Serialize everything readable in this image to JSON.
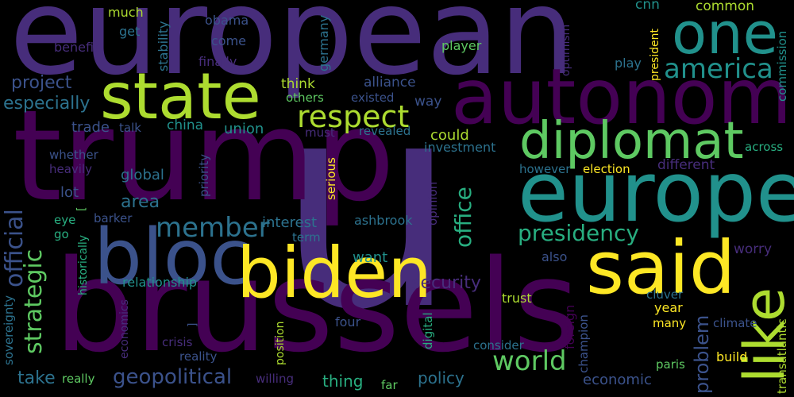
{
  "palette": {
    "dark_purple": "#440154",
    "purple": "#472d7b",
    "indigo": "#3b528b",
    "blue": "#2c728e",
    "teal": "#21918c",
    "green": "#28ae80",
    "light_green": "#5ec962",
    "lime": "#addc30",
    "yellow": "#fde725"
  },
  "words": [
    {
      "text": "u",
      "color": "#472d7b"
    },
    {
      "text": "european",
      "color": "#472d7b"
    },
    {
      "text": "trump",
      "color": "#440154"
    },
    {
      "text": "brussels",
      "color": "#440154"
    },
    {
      "text": "autonomy",
      "color": "#440154"
    },
    {
      "text": "state",
      "color": "#addc30"
    },
    {
      "text": "one",
      "color": "#21918c"
    },
    {
      "text": "europe",
      "color": "#21918c"
    },
    {
      "text": "diplomat",
      "color": "#5ec962"
    },
    {
      "text": "bloc",
      "color": "#3b528b"
    },
    {
      "text": "biden",
      "color": "#fde725"
    },
    {
      "text": "said",
      "color": "#fde725"
    },
    {
      "text": "like",
      "color": "#addc30"
    },
    {
      "text": "respect",
      "color": "#addc30"
    },
    {
      "text": "america",
      "color": "#21918c"
    },
    {
      "text": "presidency",
      "color": "#28ae80"
    },
    {
      "text": "member",
      "color": "#2c728e"
    },
    {
      "text": "official",
      "color": "#3b528b"
    },
    {
      "text": "strategic",
      "color": "#5ec962"
    },
    {
      "text": "office",
      "color": "#28ae80"
    },
    {
      "text": "world",
      "color": "#5ec962"
    },
    {
      "text": "problem",
      "color": "#3b528b"
    },
    {
      "text": "geopolitical",
      "color": "#3b528b"
    },
    {
      "text": "security",
      "color": "#472d7b"
    },
    {
      "text": "project",
      "color": "#3b528b"
    },
    {
      "text": "especially",
      "color": "#2c728e"
    },
    {
      "text": "much",
      "color": "#addc30"
    },
    {
      "text": "obama",
      "color": "#3b528b"
    },
    {
      "text": "get",
      "color": "#2c728e"
    },
    {
      "text": "benefit",
      "color": "#472d7b"
    },
    {
      "text": "stability",
      "color": "#2c728e"
    },
    {
      "text": "come",
      "color": "#3b528b"
    },
    {
      "text": "finally",
      "color": "#472d7b"
    },
    {
      "text": "germany",
      "color": "#2c728e"
    },
    {
      "text": "optimism",
      "color": "#472d7b"
    },
    {
      "text": "cnn",
      "color": "#21918c"
    },
    {
      "text": "common",
      "color": "#addc30"
    },
    {
      "text": "player",
      "color": "#5ec962"
    },
    {
      "text": "play",
      "color": "#2c728e"
    },
    {
      "text": "president",
      "color": "#fde725"
    },
    {
      "text": "commission",
      "color": "#21918c"
    },
    {
      "text": "think",
      "color": "#addc30"
    },
    {
      "text": "alliance",
      "color": "#3b528b"
    },
    {
      "text": "others",
      "color": "#5ec962"
    },
    {
      "text": "existed",
      "color": "#3b528b"
    },
    {
      "text": "way",
      "color": "#3b528b"
    },
    {
      "text": "trade",
      "color": "#3b528b"
    },
    {
      "text": "talk",
      "color": "#3b528b"
    },
    {
      "text": "china",
      "color": "#21918c"
    },
    {
      "text": "union",
      "color": "#21918c"
    },
    {
      "text": "must",
      "color": "#472d7b"
    },
    {
      "text": "revealed",
      "color": "#2c728e"
    },
    {
      "text": "could",
      "color": "#addc30"
    },
    {
      "text": "investment",
      "color": "#2c728e"
    },
    {
      "text": "across",
      "color": "#28ae80"
    },
    {
      "text": "whether",
      "color": "#3b528b"
    },
    {
      "text": "heavily",
      "color": "#472d7b"
    },
    {
      "text": "global",
      "color": "#2c728e"
    },
    {
      "text": "priority",
      "color": "#3b528b"
    },
    {
      "text": "serious",
      "color": "#fde725"
    },
    {
      "text": "however",
      "color": "#2c728e"
    },
    {
      "text": "election",
      "color": "#fde725"
    },
    {
      "text": "different",
      "color": "#472d7b"
    },
    {
      "text": "lot",
      "color": "#3b528b"
    },
    {
      "text": "area",
      "color": "#2c728e"
    },
    {
      "text": "opinion",
      "color": "#472d7b"
    },
    {
      "text": "eye",
      "color": "#28ae80"
    },
    {
      "text": "go",
      "color": "#28ae80"
    },
    {
      "text": "barker",
      "color": "#3b528b"
    },
    {
      "text": "interest",
      "color": "#2c728e"
    },
    {
      "text": "ashbrook",
      "color": "#2c728e"
    },
    {
      "text": "term",
      "color": "#2c728e"
    },
    {
      "text": "want",
      "color": "#21918c"
    },
    {
      "text": "worry",
      "color": "#472d7b"
    },
    {
      "text": "also",
      "color": "#3b528b"
    },
    {
      "text": "historically",
      "color": "#28ae80"
    },
    {
      "text": "relationship",
      "color": "#21918c"
    },
    {
      "text": "sovereignty",
      "color": "#2c728e"
    },
    {
      "text": "economics",
      "color": "#472d7b"
    },
    {
      "text": "crisis",
      "color": "#472d7b"
    },
    {
      "text": "reality",
      "color": "#3b528b"
    },
    {
      "text": "position",
      "color": "#addc30"
    },
    {
      "text": "four",
      "color": "#3b528b"
    },
    {
      "text": "digital",
      "color": "#28ae80"
    },
    {
      "text": "trust",
      "color": "#addc30"
    },
    {
      "text": "foreign",
      "color": "#440154"
    },
    {
      "text": "champion",
      "color": "#3b528b"
    },
    {
      "text": "cluver",
      "color": "#2c728e"
    },
    {
      "text": "year",
      "color": "#fde725"
    },
    {
      "text": "many",
      "color": "#fde725"
    },
    {
      "text": "climate",
      "color": "#3b528b"
    },
    {
      "text": "transatlantic",
      "color": "#addc30"
    },
    {
      "text": "consider",
      "color": "#2c728e"
    },
    {
      "text": "paris",
      "color": "#5ec962"
    },
    {
      "text": "build",
      "color": "#fde725"
    },
    {
      "text": "take",
      "color": "#2c728e"
    },
    {
      "text": "really",
      "color": "#5ec962"
    },
    {
      "text": "willing",
      "color": "#472d7b"
    },
    {
      "text": "thing",
      "color": "#28ae80"
    },
    {
      "text": "far",
      "color": "#5ec962"
    },
    {
      "text": "policy",
      "color": "#2c728e"
    },
    {
      "text": "economic",
      "color": "#3b528b"
    },
    {
      "text": "[",
      "color": "#5ec962"
    },
    {
      "text": "]",
      "color": "#3b528b"
    }
  ]
}
